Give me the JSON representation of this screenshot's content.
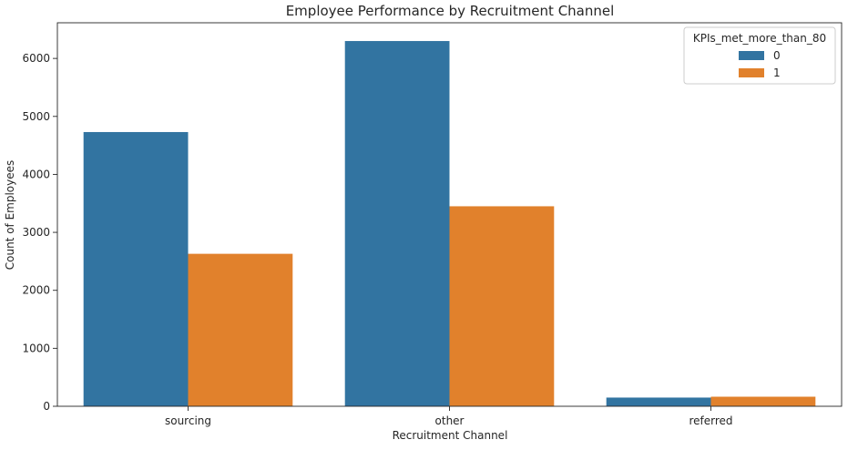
{
  "chart_data": {
    "type": "bar",
    "title": "Employee Performance by Recruitment Channel",
    "xlabel": "Recruitment Channel",
    "ylabel": "Count of Employees",
    "categories": [
      "sourcing",
      "other",
      "referred"
    ],
    "series": [
      {
        "name": "0",
        "values": [
          4730,
          6300,
          150
        ],
        "color": "#3274a1"
      },
      {
        "name": "1",
        "values": [
          2630,
          3450,
          165
        ],
        "color": "#e1812c"
      }
    ],
    "ylim": [
      0,
      6615
    ],
    "yticks": [
      0,
      1000,
      2000,
      3000,
      4000,
      5000,
      6000
    ],
    "legend": {
      "title": "KPIs_met_more_than_80",
      "placement": "top-right"
    },
    "grid": false
  }
}
